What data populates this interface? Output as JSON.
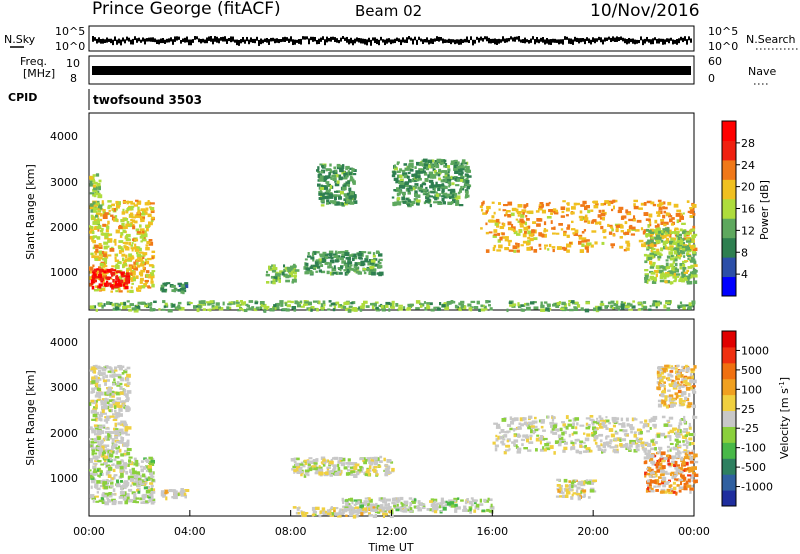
{
  "header": {
    "station": "Prince George (fitACF)",
    "beam": "Beam 02",
    "date": "10/Nov/2016"
  },
  "strip_nsky": {
    "left_label": "N.Sky",
    "right_label": "N.Search",
    "left_ticks": [
      "10^5",
      "10^0"
    ],
    "right_ticks": [
      "10^5",
      "10^0"
    ]
  },
  "strip_freq": {
    "left_label_line1": "Freq.",
    "left_label_line2": "[MHz]",
    "right_label": "Nave",
    "left_ticks": [
      "10",
      "8"
    ],
    "right_ticks": [
      "60",
      "0"
    ]
  },
  "strip_cpid": {
    "left_label": "CPID",
    "program": "twofsound 3503"
  },
  "power_panel": {
    "ylabel": "Slant Range [km]",
    "yticks": [
      "4000",
      "3000",
      "2000",
      "1000"
    ],
    "colorbar_label": "Power [dB]",
    "colorbar_ticks": [
      "28",
      "24",
      "20",
      "16",
      "12",
      "8",
      "4"
    ],
    "colors": [
      "#0000ff",
      "#2c4fa8",
      "#2e7f50",
      "#5ea85e",
      "#aedc3c",
      "#f0c020",
      "#f07818",
      "#f02010",
      "#ff0000"
    ]
  },
  "velocity_panel": {
    "ylabel": "Slant Range [km]",
    "yticks": [
      "4000",
      "3000",
      "2000",
      "1000"
    ],
    "colorbar_label": "Velocity [m s",
    "colorbar_label_sup": "-1",
    "colorbar_label_end": "]",
    "colorbar_ticks": [
      "1000",
      "500",
      "100",
      "25",
      "-25",
      "-100",
      "-500",
      "-1000"
    ],
    "colors": [
      "#1f2e9e",
      "#3060a0",
      "#2e8060",
      "#48b848",
      "#8ad03c",
      "#c8c8c8",
      "#f0d040",
      "#f0a020",
      "#f07010",
      "#f03010",
      "#e00000"
    ]
  },
  "xaxis": {
    "label": "Time UT",
    "ticks": [
      "00:00",
      "04:00",
      "08:00",
      "12:00",
      "16:00",
      "20:00",
      "00:00"
    ]
  },
  "chart_data": {
    "type": "heatmap",
    "title": "Prince George (fitACF) Beam 02 10/Nov/2016",
    "xlabel": "Time UT",
    "ylabel": "Slant Range [km]",
    "xlim": [
      "00:00",
      "24:00"
    ],
    "ylim": [
      180,
      4500
    ],
    "panels": [
      {
        "name": "Power",
        "unit": "dB",
        "colorbar_range": [
          0,
          30
        ],
        "regions": [
          {
            "t_start": 0.0,
            "t_end": 2.5,
            "range_start": 600,
            "range_end": 2600,
            "value": 18
          },
          {
            "t_start": 0.0,
            "t_end": 1.5,
            "range_start": 700,
            "range_end": 1100,
            "value": 28
          },
          {
            "t_start": 0.0,
            "t_end": 0.4,
            "range_start": 2000,
            "range_end": 3200,
            "value": 14
          },
          {
            "t_start": 2.8,
            "t_end": 3.8,
            "range_start": 600,
            "range_end": 800,
            "value": 8
          },
          {
            "t_start": 7.0,
            "t_end": 8.2,
            "range_start": 800,
            "range_end": 1200,
            "value": 12
          },
          {
            "t_start": 8.5,
            "t_end": 11.5,
            "range_start": 1000,
            "range_end": 1500,
            "value": 10
          },
          {
            "t_start": 9.0,
            "t_end": 10.5,
            "range_start": 2500,
            "range_end": 3400,
            "value": 10
          },
          {
            "t_start": 12.0,
            "t_end": 15.0,
            "range_start": 2500,
            "range_end": 3500,
            "value": 10
          },
          {
            "t_start": 15.5,
            "t_end": 24.0,
            "range_start": 1500,
            "range_end": 2600,
            "value": 20
          },
          {
            "t_start": 0.0,
            "t_end": 24.0,
            "range_start": 200,
            "range_end": 400,
            "value": 12
          },
          {
            "t_start": 22.0,
            "t_end": 24.0,
            "range_start": 800,
            "range_end": 2000,
            "value": 14
          }
        ]
      },
      {
        "name": "Velocity",
        "unit": "m s-1",
        "colorbar_range": [
          -1000,
          1000
        ],
        "regions": [
          {
            "t_start": 0.0,
            "t_end": 2.5,
            "range_start": 500,
            "range_end": 1500,
            "value": 100
          },
          {
            "t_start": 0.0,
            "t_end": 1.5,
            "range_start": 1500,
            "range_end": 3500,
            "value": 0
          },
          {
            "t_start": 2.8,
            "t_end": 3.8,
            "range_start": 600,
            "range_end": 800,
            "value": -100
          },
          {
            "t_start": 8.0,
            "t_end": 12.0,
            "range_start": 1100,
            "range_end": 1500,
            "value": 0
          },
          {
            "t_start": 10.0,
            "t_end": 16.0,
            "range_start": 300,
            "range_end": 600,
            "value": 100
          },
          {
            "t_start": 8.0,
            "t_end": 12.0,
            "range_start": 200,
            "range_end": 400,
            "value": -100
          },
          {
            "t_start": 16.0,
            "t_end": 24.0,
            "range_start": 1600,
            "range_end": 2400,
            "value": 0
          },
          {
            "t_start": 18.5,
            "t_end": 20.0,
            "range_start": 600,
            "range_end": 1000,
            "value": -100
          },
          {
            "t_start": 22.0,
            "t_end": 24.0,
            "range_start": 700,
            "range_end": 1600,
            "value": -500
          },
          {
            "t_start": 22.5,
            "t_end": 24.0,
            "range_start": 2600,
            "range_end": 3500,
            "value": -300
          }
        ]
      }
    ]
  }
}
